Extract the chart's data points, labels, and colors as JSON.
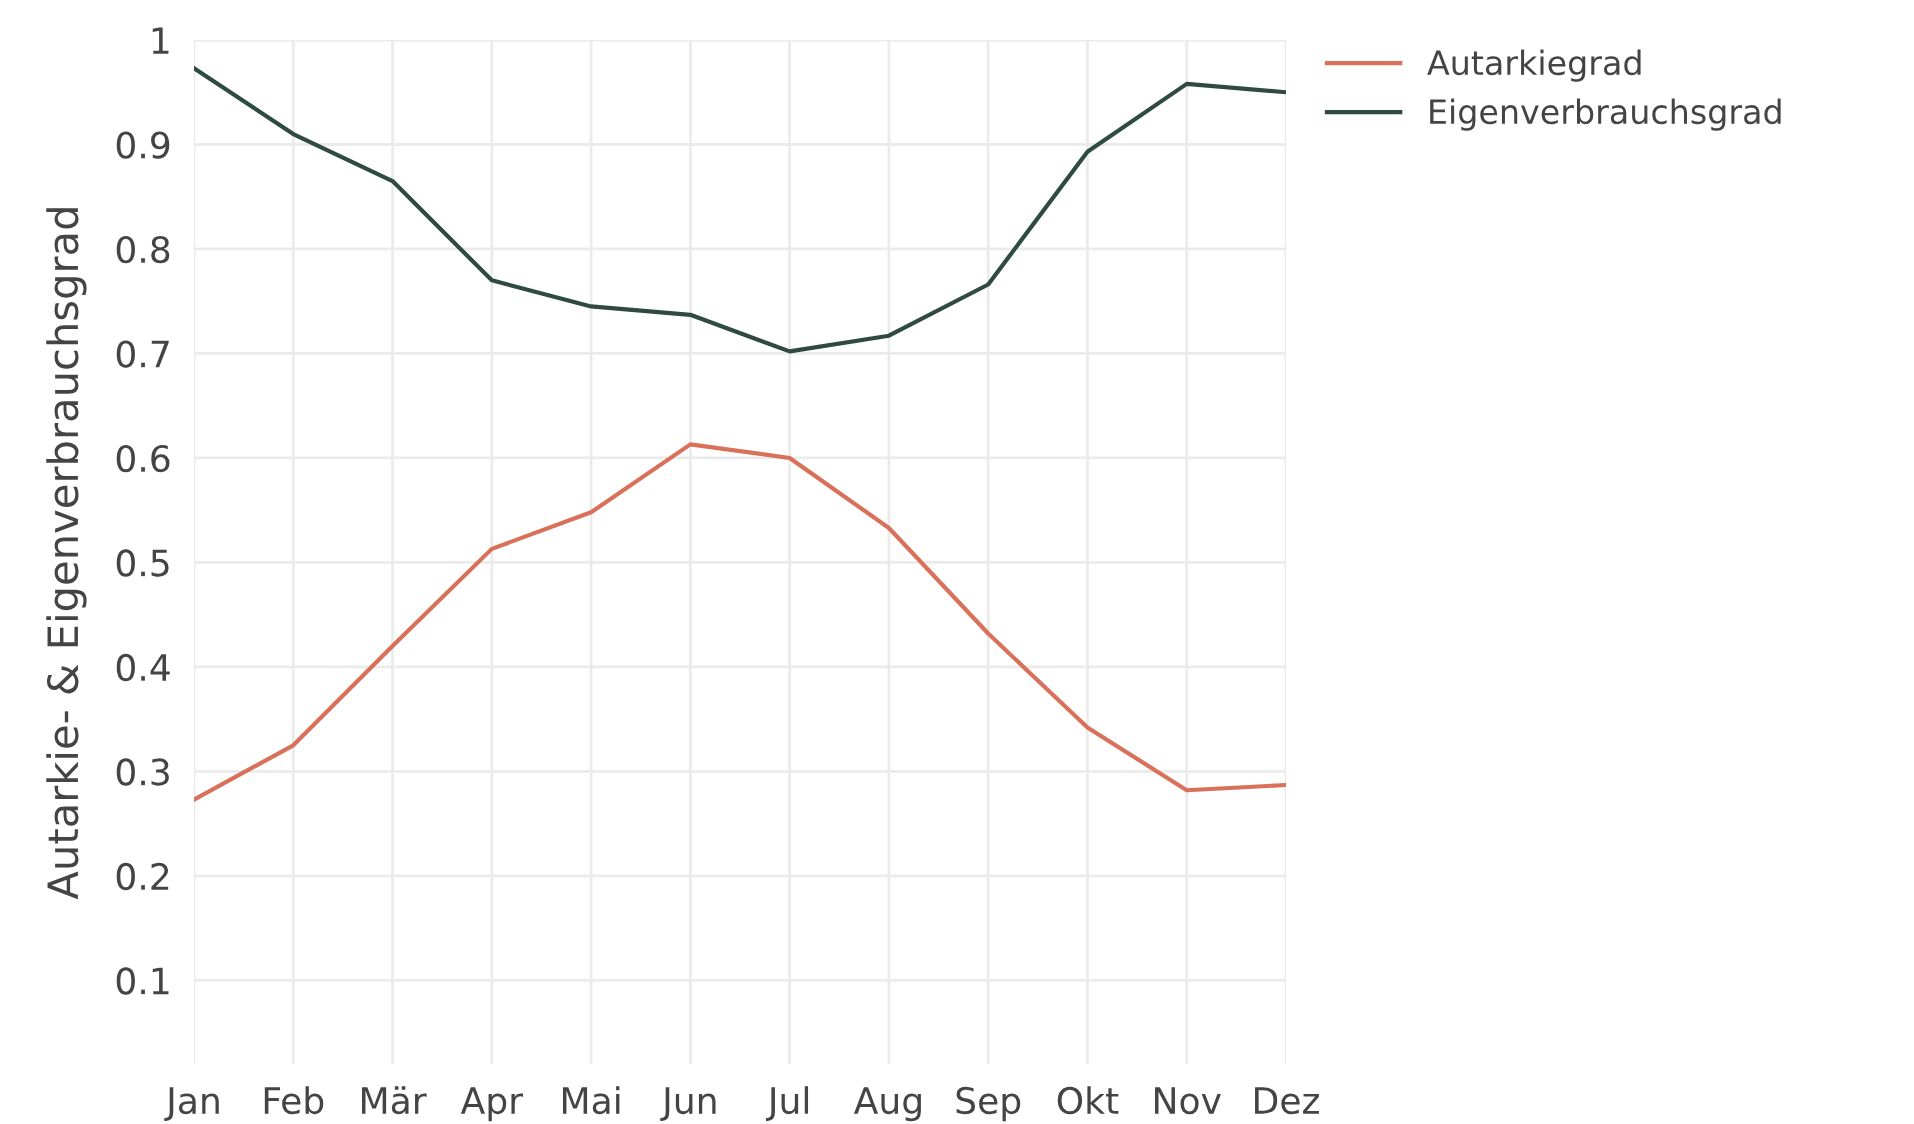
{
  "chart_data": {
    "type": "line",
    "ylabel": "Autarkie- & Eigenverbrauchsgrad",
    "categories": [
      "Jan",
      "Feb",
      "Mär",
      "Apr",
      "Mai",
      "Jun",
      "Jul",
      "Aug",
      "Sep",
      "Okt",
      "Nov",
      "Dez"
    ],
    "series": [
      {
        "name": "Autarkiegrad",
        "color": "#d9705a",
        "values": [
          0.273,
          0.325,
          0.42,
          0.513,
          0.548,
          0.613,
          0.6,
          0.533,
          0.432,
          0.342,
          0.282,
          0.287
        ]
      },
      {
        "name": "Eigenverbrauchsgrad",
        "color": "#2f4a42",
        "values": [
          0.973,
          0.91,
          0.865,
          0.77,
          0.745,
          0.737,
          0.702,
          0.717,
          0.766,
          0.893,
          0.958,
          0.95
        ]
      }
    ],
    "ylim": [
      0.02,
      1
    ],
    "yticks": [
      0.1,
      0.2,
      0.3,
      0.4,
      0.5,
      0.6,
      0.7,
      0.8,
      0.9,
      1
    ],
    "grid": true,
    "legend": "top right",
    "marker": "none",
    "line_style": "solid"
  }
}
